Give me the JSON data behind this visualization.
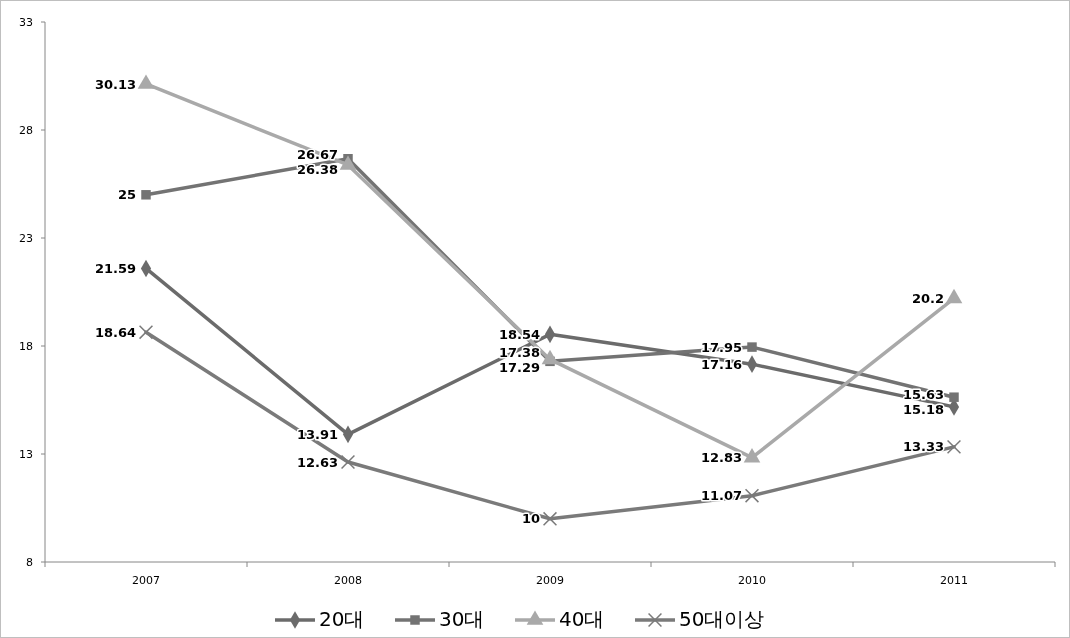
{
  "chart_data": {
    "type": "line",
    "categories": [
      "2007",
      "2008",
      "2009",
      "2010",
      "2011"
    ],
    "series": [
      {
        "name": "20대",
        "color": "#6b6b6b",
        "marker": "diamond",
        "values": [
          21.59,
          13.91,
          18.54,
          17.16,
          15.18
        ]
      },
      {
        "name": "30대",
        "color": "#737373",
        "marker": "square",
        "values": [
          25,
          26.67,
          17.29,
          17.95,
          15.63
        ]
      },
      {
        "name": "40대",
        "color": "#a9a9a9",
        "marker": "triangle",
        "values": [
          30.13,
          26.38,
          17.38,
          12.83,
          20.2
        ]
      },
      {
        "name": "50대이상",
        "color": "#7a7a7a",
        "marker": "cross",
        "values": [
          18.64,
          12.63,
          10,
          11.07,
          13.33
        ]
      }
    ],
    "ylim": [
      8,
      33
    ],
    "yticks": [
      8,
      13,
      18,
      23,
      28,
      33
    ],
    "data_labels": true,
    "legend": "bottom",
    "grid": false
  }
}
